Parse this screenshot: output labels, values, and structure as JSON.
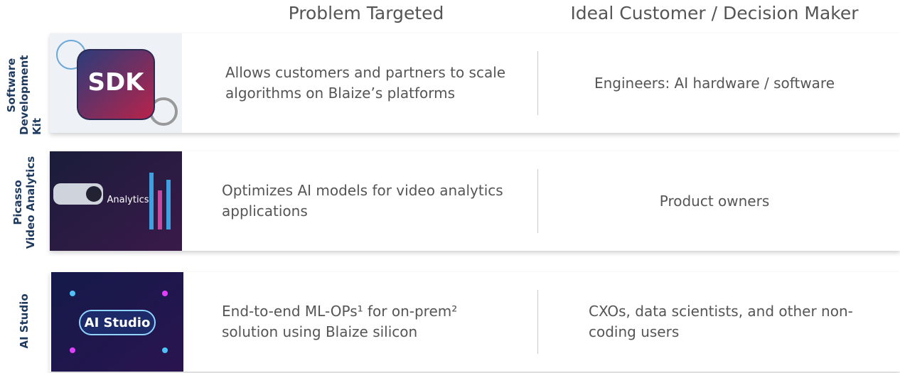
{
  "header": {
    "columns": [
      "Problem Targeted",
      "Ideal Customer / Decision Maker"
    ]
  },
  "rows": [
    {
      "side_label": [
        "Software",
        "Development Kit"
      ],
      "image_label": "SDK",
      "problem": "Allows customers and partners to scale algorithms on Blaize’s platforms",
      "customer": "Engineers: AI hardware / software"
    },
    {
      "side_label": [
        "Picasso",
        "Video Analytics"
      ],
      "image_label": "Analytics",
      "problem": "Optimizes AI models for video analytics applications",
      "customer": "Product owners"
    },
    {
      "side_label": [
        "AI Studio"
      ],
      "image_label": "AI Studio",
      "problem": "End-to-end ML-OPs¹ for on-prem² solution using Blaize silicon",
      "customer": "CXOs, data scientists, and other non-coding users"
    }
  ]
}
